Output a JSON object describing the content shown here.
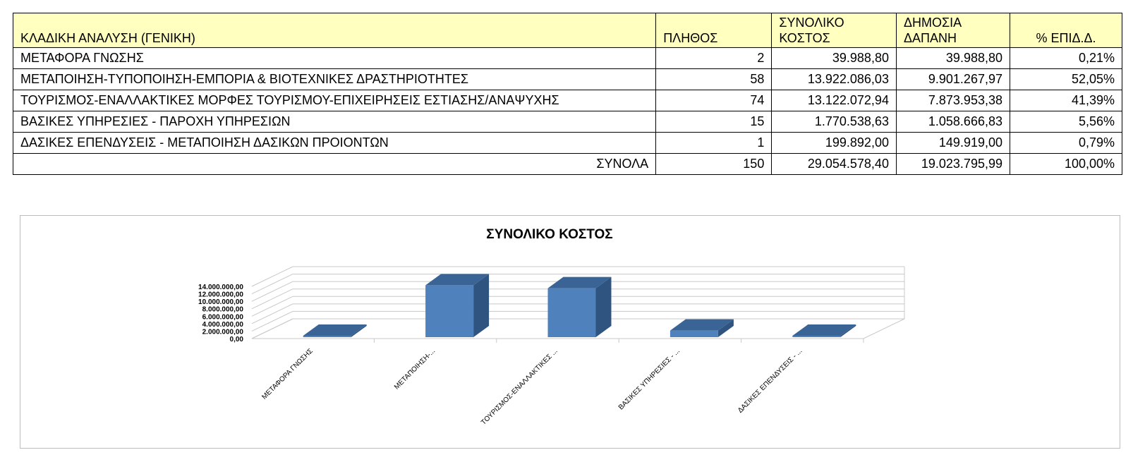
{
  "table": {
    "headers": {
      "category": "ΚΛΑΔΙΚΗ ΑΝΑΛΥΣΗ (ΓΕΝΙΚΗ)",
      "count": "ΠΛΗΘΟΣ",
      "total_cost_line1": "ΣΥΝΟΛΙΚΟ",
      "total_cost_line2": "ΚΟΣΤΟΣ",
      "public_line1": "ΔΗΜΟΣΙΑ",
      "public_line2": "ΔΑΠΑΝΗ",
      "pct": "% ΕΠΙΔ.Δ."
    },
    "rows": [
      {
        "category": "ΜΕΤΑΦΟΡΑ ΓΝΩΣΗΣ",
        "count": "2",
        "total_cost": "39.988,80",
        "public": "39.988,80",
        "pct": "0,21%"
      },
      {
        "category": "ΜΕΤΑΠΟΙΗΣΗ-ΤΥΠΟΠΟΙΗΣΗ-ΕΜΠΟΡΙΑ & ΒΙΟΤΕΧΝΙΚΕΣ ΔΡΑΣΤΗΡΙΟΤΗΤΕΣ",
        "count": "58",
        "total_cost": "13.922.086,03",
        "public": "9.901.267,97",
        "pct": "52,05%"
      },
      {
        "category": "ΤΟΥΡΙΣΜΟΣ-ΕΝΑΛΛΑΚΤΙΚΕΣ ΜΟΡΦΕΣ ΤΟΥΡΙΣΜΟΥ-ΕΠΙΧΕΙΡΗΣΕΙΣ ΕΣΤΙΑΣΗΣ/ΑΝΑΨΥΧΗΣ",
        "count": "74",
        "total_cost": "13.122.072,94",
        "public": "7.873.953,38",
        "pct": "41,39%"
      },
      {
        "category": "ΒΑΣΙΚΕΣ ΥΠΗΡΕΣΙΕΣ - ΠΑΡΟΧΗ ΥΠΗΡΕΣΙΩΝ",
        "count": "15",
        "total_cost": "1.770.538,63",
        "public": "1.058.666,83",
        "pct": "5,56%"
      },
      {
        "category": "ΔΑΣΙΚΕΣ ΕΠΕΝΔΥΣΕΙΣ - ΜΕΤΑΠΟΙΗΣΗ ΔΑΣΙΚΩΝ ΠΡΟΙΟΝΤΩΝ",
        "count": "1",
        "total_cost": "199.892,00",
        "public": "149.919,00",
        "pct": "0,79%"
      }
    ],
    "totals": {
      "label": "ΣΥΝΟΛΑ",
      "count": "150",
      "total_cost": "29.054.578,40",
      "public": "19.023.795,99",
      "pct": "100,00%"
    }
  },
  "chart_data": {
    "type": "bar",
    "style": "3d-column",
    "title": "ΣΥΝΟΛΙΚΟ ΚΟΣΤΟΣ",
    "categories": [
      "ΜΕΤΑΦΟΡΑ ΓΝΩΣΗΣ",
      "ΜΕΤΑΠΟΙΗΣΗ-...",
      "ΤΟΥΡΙΣΜΟΣ-ΕΝΑΛΛΑΚΤΙΚΕΣ ...",
      "ΒΑΣΙΚΕΣ ΥΠΗΡΕΣΙΕΣ - ...",
      "ΔΑΣΙΚΕΣ ΕΠΕΝΔΥΣΕΙΣ - ..."
    ],
    "values": [
      39988.8,
      13922086.03,
      13122072.94,
      1770538.63,
      199892.0
    ],
    "ylim": [
      0,
      14000000
    ],
    "yticks": [
      "0,00",
      "2.000.000,00",
      "4.000.000,00",
      "6.000.000,00",
      "8.000.000,00",
      "10.000.000,00",
      "12.000.000,00",
      "14.000.000,00"
    ],
    "grid": true,
    "legend": "none",
    "colors": {
      "front": "#4f81bd",
      "top": "#3a6496",
      "side": "#2f5480",
      "grid": "#c8c8c8"
    }
  }
}
